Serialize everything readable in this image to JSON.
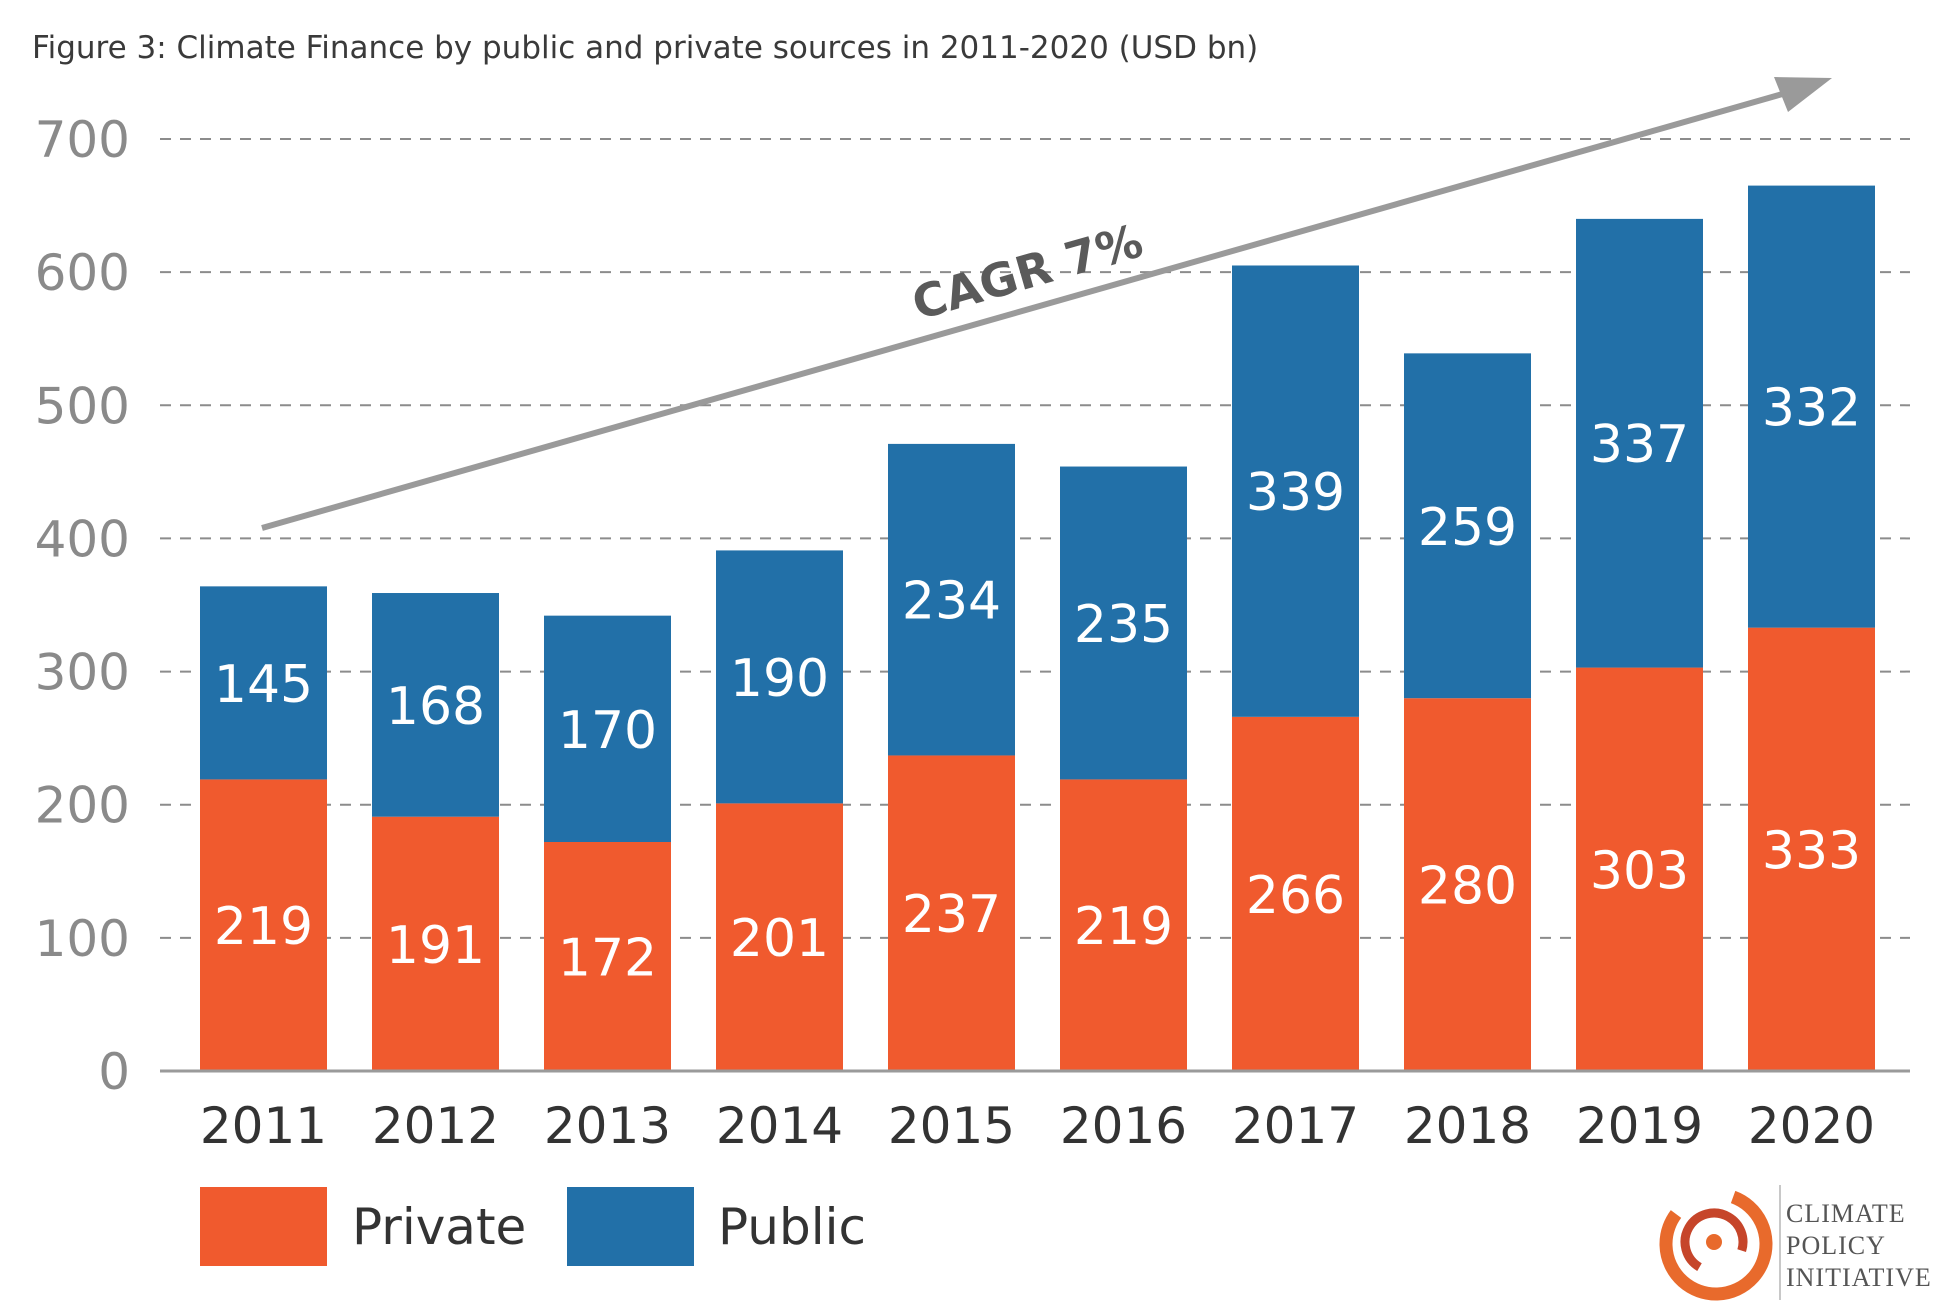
{
  "chart_data": {
    "type": "bar",
    "stacked": true,
    "title": "Figure 3: Climate Finance by public and private sources in 2011-2020 (USD bn)",
    "categories": [
      "2011",
      "2012",
      "2013",
      "2014",
      "2015",
      "2016",
      "2017",
      "2018",
      "2019",
      "2020"
    ],
    "series": [
      {
        "name": "Private",
        "color": "#F05A2E",
        "values": [
          219,
          191,
          172,
          201,
          237,
          219,
          266,
          280,
          303,
          333
        ]
      },
      {
        "name": "Public",
        "color": "#2270A8",
        "values": [
          145,
          168,
          170,
          190,
          234,
          235,
          339,
          259,
          337,
          332
        ]
      }
    ],
    "ylim": [
      0,
      700
    ],
    "yticks": [
      0,
      100,
      200,
      300,
      400,
      500,
      600,
      700
    ],
    "grid": true,
    "legend_position": "bottom-left",
    "annotation": "CAGR 7%"
  },
  "logo": {
    "line1": "CLIMATE",
    "line2": "POLICY",
    "line3": "INITIATIVE"
  }
}
